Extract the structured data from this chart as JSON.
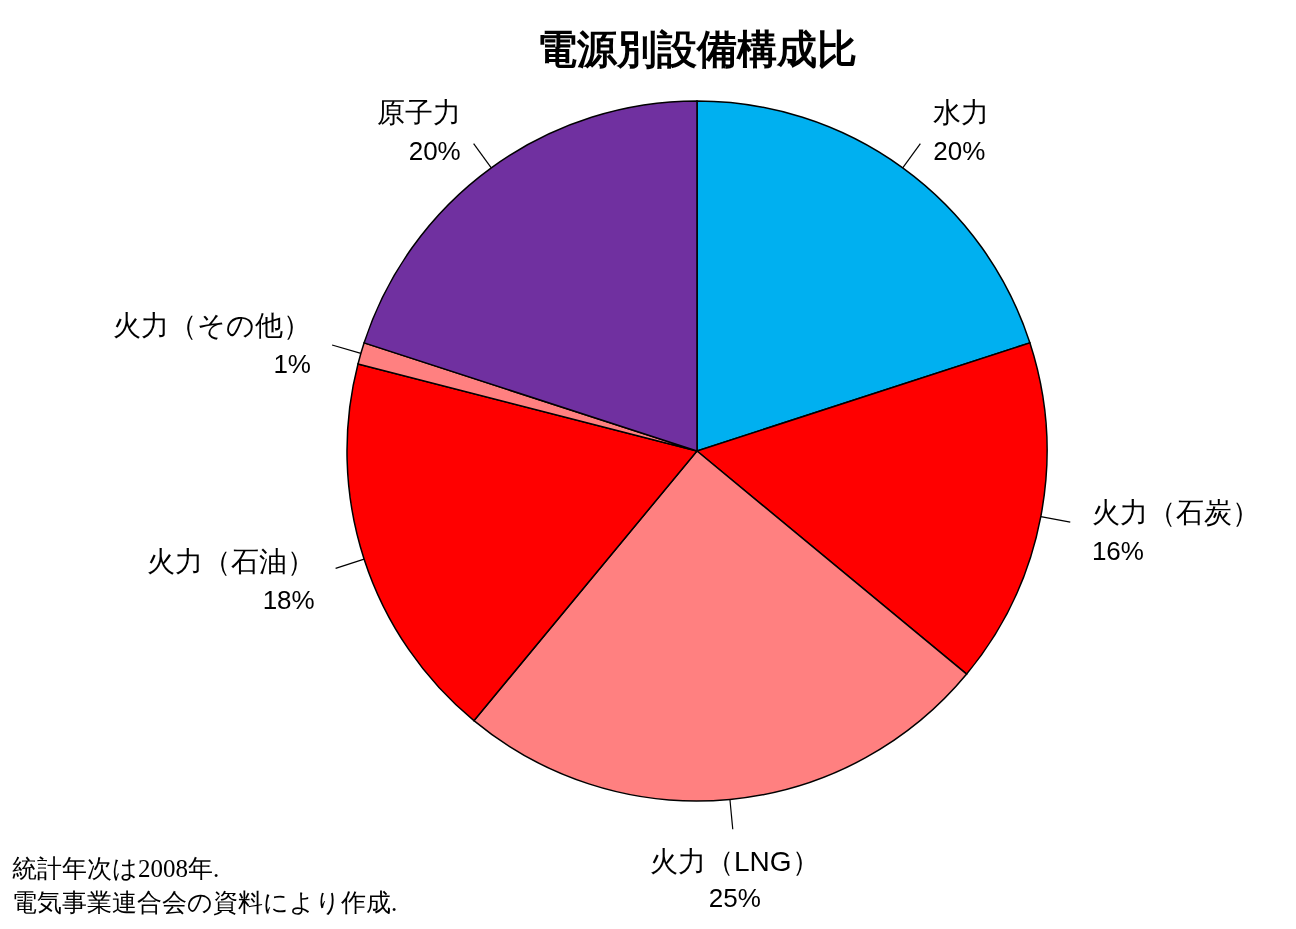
{
  "chart_data": {
    "type": "pie",
    "title": "電源別設備構成比",
    "categories": [
      "水力",
      "火力（石炭）",
      "火力（LNG）",
      "火力（石油）",
      "火力（その他）",
      "原子力"
    ],
    "values": [
      20,
      16,
      25,
      18,
      1,
      20
    ],
    "value_labels": [
      "20%",
      "16%",
      "25%",
      "18%",
      "1%",
      "20%"
    ],
    "colors": [
      "#00b0f0",
      "#ff0000",
      "#ff8080",
      "#ff0000",
      "#ff8080",
      "#7030a0"
    ],
    "annotations": [
      "統計年次は2008年.",
      "電気事業連合会の資料により作成."
    ]
  }
}
